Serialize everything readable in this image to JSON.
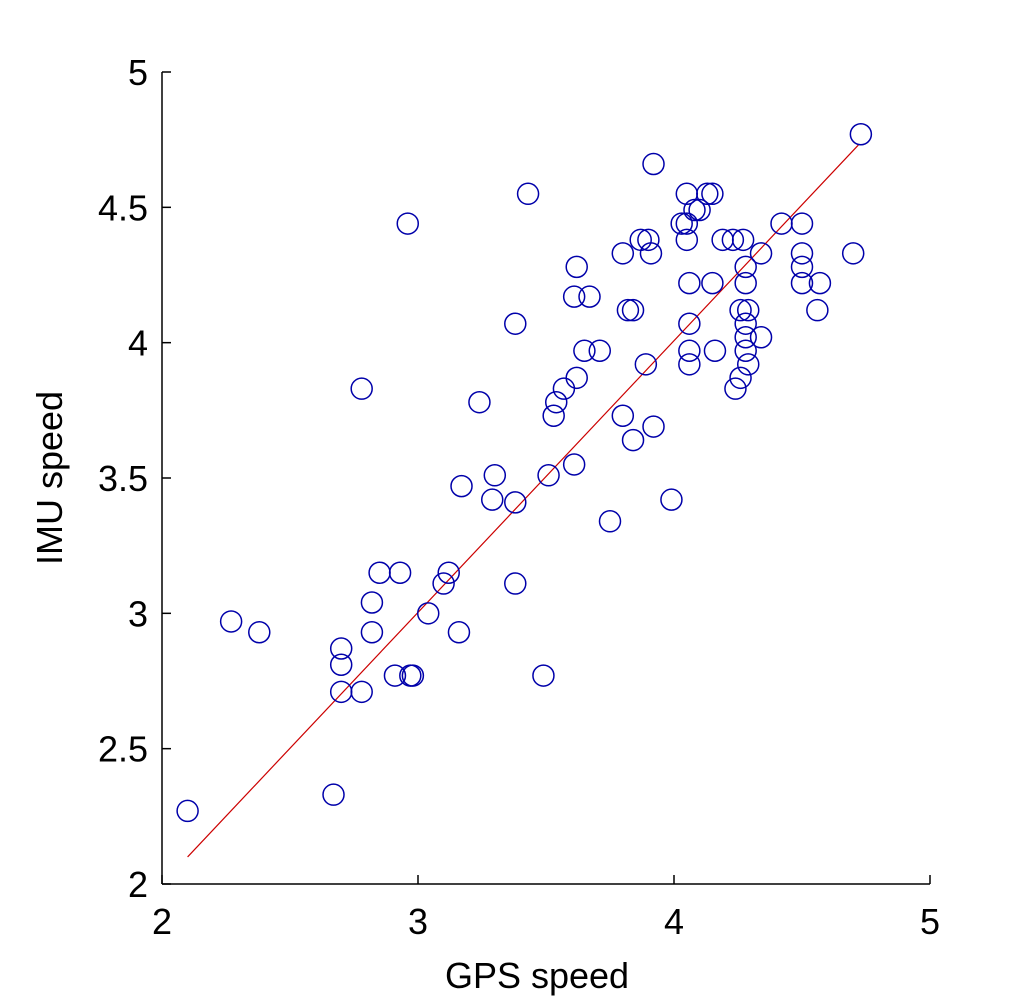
{
  "chart_data": {
    "type": "scatter",
    "title": "",
    "xlabel": "GPS speed",
    "ylabel": "IMU speed",
    "xlim": [
      2,
      5
    ],
    "ylim": [
      2,
      5
    ],
    "xticks": [
      "2",
      "3",
      "4",
      "5"
    ],
    "yticks": [
      "2",
      "2.5",
      "3",
      "3.5",
      "4",
      "4.5",
      "5"
    ],
    "grid": false,
    "legend": "none",
    "colors": {
      "marker": "#0000aa",
      "fit_line": "#cc0000",
      "axis": "#000000"
    },
    "series": [
      {
        "marker": "open-circle",
        "x": [
          2.1,
          2.27,
          2.38,
          2.67,
          2.7,
          2.7,
          2.7,
          2.78,
          2.78,
          2.82,
          2.82,
          2.85,
          2.91,
          2.93,
          2.96,
          2.97,
          2.98,
          3.04,
          3.1,
          3.12,
          3.16,
          3.17,
          3.24,
          3.29,
          3.3,
          3.38,
          3.38,
          3.38,
          3.43,
          3.49,
          3.51,
          3.53,
          3.54,
          3.57,
          3.61,
          3.61,
          3.62,
          3.62,
          3.65,
          3.67,
          3.71,
          3.75,
          3.8,
          3.8,
          3.82,
          3.84,
          3.84,
          3.87,
          3.89,
          3.9,
          3.91,
          3.92,
          3.92,
          3.99,
          4.03,
          4.05,
          4.05,
          4.05,
          4.06,
          4.06,
          4.06,
          4.06,
          4.08,
          4.1,
          4.13,
          4.15,
          4.15,
          4.16,
          4.19,
          4.23,
          4.24,
          4.26,
          4.26,
          4.27,
          4.28,
          4.28,
          4.28,
          4.28,
          4.28,
          4.29,
          4.29,
          4.34,
          4.34,
          4.42,
          4.5,
          4.5,
          4.5,
          4.5,
          4.56,
          4.57,
          4.7,
          4.73
        ],
        "y": [
          2.27,
          2.97,
          2.93,
          2.33,
          2.71,
          2.81,
          2.87,
          2.71,
          3.83,
          2.93,
          3.04,
          3.15,
          2.77,
          3.15,
          4.44,
          2.77,
          2.77,
          3.0,
          3.11,
          3.15,
          2.93,
          3.47,
          3.78,
          3.42,
          3.51,
          3.11,
          3.41,
          4.07,
          4.55,
          2.77,
          3.51,
          3.73,
          3.78,
          3.83,
          3.55,
          4.17,
          3.87,
          4.28,
          3.97,
          4.17,
          3.97,
          3.34,
          3.73,
          4.33,
          4.12,
          3.64,
          4.12,
          4.38,
          3.92,
          4.38,
          4.33,
          3.69,
          4.66,
          3.42,
          4.44,
          4.44,
          4.55,
          4.38,
          4.22,
          4.07,
          3.97,
          3.92,
          4.49,
          4.49,
          4.55,
          4.55,
          4.22,
          3.97,
          4.38,
          4.38,
          3.83,
          4.12,
          3.87,
          4.38,
          4.28,
          4.22,
          4.07,
          4.02,
          3.97,
          3.92,
          4.12,
          4.33,
          4.02,
          4.44,
          4.44,
          4.33,
          4.28,
          4.22,
          4.12,
          4.22,
          4.33,
          4.77
        ]
      }
    ],
    "fit_line": {
      "x": [
        2.1,
        4.72
      ],
      "y": [
        2.1,
        4.73
      ]
    }
  }
}
